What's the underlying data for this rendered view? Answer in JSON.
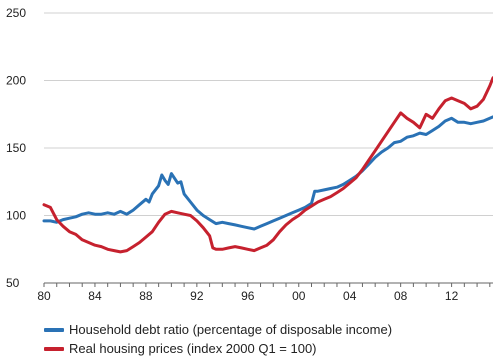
{
  "chart_data": {
    "type": "line",
    "title": "",
    "xlabel": "",
    "ylabel": "",
    "xlim": [
      1980,
      2015.25
    ],
    "ylim": [
      50,
      250
    ],
    "x_ticks": [
      1980,
      1984,
      1988,
      1992,
      1996,
      2000,
      2004,
      2008,
      2012
    ],
    "x_tick_labels": [
      "80",
      "84",
      "88",
      "92",
      "96",
      "00",
      "04",
      "08",
      "12"
    ],
    "y_ticks": [
      50,
      100,
      150,
      200,
      250
    ],
    "y_tick_labels": [
      "50",
      "100",
      "150",
      "200",
      "250"
    ],
    "grid": "horizontal",
    "legend_position": "bottom",
    "series": [
      {
        "name": "Household debt ratio (percentage of disposable income)",
        "color": "#2a72b5",
        "points": [
          [
            1980.0,
            96
          ],
          [
            1980.5,
            96
          ],
          [
            1981.0,
            95
          ],
          [
            1981.5,
            97
          ],
          [
            1982.0,
            98
          ],
          [
            1982.5,
            99
          ],
          [
            1983.0,
            101
          ],
          [
            1983.5,
            102
          ],
          [
            1984.0,
            101
          ],
          [
            1984.5,
            101
          ],
          [
            1985.0,
            102
          ],
          [
            1985.5,
            101
          ],
          [
            1986.0,
            103
          ],
          [
            1986.5,
            101
          ],
          [
            1987.0,
            104
          ],
          [
            1987.5,
            108
          ],
          [
            1988.0,
            112
          ],
          [
            1988.25,
            110
          ],
          [
            1988.5,
            116
          ],
          [
            1989.0,
            122
          ],
          [
            1989.25,
            130
          ],
          [
            1989.5,
            126
          ],
          [
            1989.75,
            123
          ],
          [
            1990.0,
            131
          ],
          [
            1990.5,
            124
          ],
          [
            1990.75,
            125
          ],
          [
            1991.0,
            116
          ],
          [
            1991.5,
            110
          ],
          [
            1992.0,
            104
          ],
          [
            1992.5,
            100
          ],
          [
            1993.0,
            97
          ],
          [
            1993.5,
            94
          ],
          [
            1994.0,
            95
          ],
          [
            1994.5,
            94
          ],
          [
            1995.0,
            93
          ],
          [
            1995.5,
            92
          ],
          [
            1996.0,
            91
          ],
          [
            1996.5,
            90
          ],
          [
            1997.0,
            92
          ],
          [
            1997.5,
            94
          ],
          [
            1998.0,
            96
          ],
          [
            1998.5,
            98
          ],
          [
            1999.0,
            100
          ],
          [
            1999.5,
            102
          ],
          [
            2000.0,
            104
          ],
          [
            2000.5,
            106
          ],
          [
            2001.0,
            109
          ],
          [
            2001.25,
            118
          ],
          [
            2001.5,
            118
          ],
          [
            2002.0,
            119
          ],
          [
            2002.5,
            120
          ],
          [
            2003.0,
            121
          ],
          [
            2003.5,
            123
          ],
          [
            2004.0,
            126
          ],
          [
            2004.5,
            129
          ],
          [
            2005.0,
            133
          ],
          [
            2005.5,
            138
          ],
          [
            2006.0,
            143
          ],
          [
            2006.5,
            147
          ],
          [
            2007.0,
            150
          ],
          [
            2007.5,
            154
          ],
          [
            2008.0,
            155
          ],
          [
            2008.5,
            158
          ],
          [
            2009.0,
            159
          ],
          [
            2009.5,
            161
          ],
          [
            2010.0,
            160
          ],
          [
            2010.5,
            163
          ],
          [
            2011.0,
            166
          ],
          [
            2011.5,
            170
          ],
          [
            2012.0,
            172
          ],
          [
            2012.5,
            169
          ],
          [
            2013.0,
            169
          ],
          [
            2013.5,
            168
          ],
          [
            2014.0,
            169
          ],
          [
            2014.5,
            170
          ],
          [
            2015.0,
            172
          ],
          [
            2015.25,
            173
          ]
        ]
      },
      {
        "name": "Real housing prices (index 2000 Q1 = 100)",
        "color": "#c6212e",
        "points": [
          [
            1980.0,
            108
          ],
          [
            1980.5,
            106
          ],
          [
            1981.0,
            97
          ],
          [
            1981.5,
            92
          ],
          [
            1982.0,
            88
          ],
          [
            1982.5,
            86
          ],
          [
            1983.0,
            82
          ],
          [
            1983.5,
            80
          ],
          [
            1984.0,
            78
          ],
          [
            1984.5,
            77
          ],
          [
            1985.0,
            75
          ],
          [
            1985.5,
            74
          ],
          [
            1986.0,
            73
          ],
          [
            1986.5,
            74
          ],
          [
            1987.0,
            77
          ],
          [
            1987.5,
            80
          ],
          [
            1988.0,
            84
          ],
          [
            1988.5,
            88
          ],
          [
            1989.0,
            95
          ],
          [
            1989.5,
            101
          ],
          [
            1990.0,
            103
          ],
          [
            1990.5,
            102
          ],
          [
            1991.0,
            101
          ],
          [
            1991.5,
            100
          ],
          [
            1992.0,
            96
          ],
          [
            1992.5,
            91
          ],
          [
            1993.0,
            85
          ],
          [
            1993.25,
            76
          ],
          [
            1993.5,
            75
          ],
          [
            1994.0,
            75
          ],
          [
            1994.5,
            76
          ],
          [
            1995.0,
            77
          ],
          [
            1995.5,
            76
          ],
          [
            1996.0,
            75
          ],
          [
            1996.5,
            74
          ],
          [
            1997.0,
            76
          ],
          [
            1997.5,
            78
          ],
          [
            1998.0,
            82
          ],
          [
            1998.5,
            88
          ],
          [
            1999.0,
            93
          ],
          [
            1999.5,
            97
          ],
          [
            2000.0,
            100
          ],
          [
            2000.5,
            104
          ],
          [
            2001.0,
            107
          ],
          [
            2001.5,
            110
          ],
          [
            2002.0,
            112
          ],
          [
            2002.5,
            114
          ],
          [
            2003.0,
            117
          ],
          [
            2003.5,
            120
          ],
          [
            2004.0,
            124
          ],
          [
            2004.5,
            128
          ],
          [
            2005.0,
            134
          ],
          [
            2005.5,
            141
          ],
          [
            2006.0,
            148
          ],
          [
            2006.5,
            155
          ],
          [
            2007.0,
            162
          ],
          [
            2007.5,
            169
          ],
          [
            2008.0,
            176
          ],
          [
            2008.5,
            172
          ],
          [
            2009.0,
            169
          ],
          [
            2009.5,
            165
          ],
          [
            2010.0,
            175
          ],
          [
            2010.5,
            172
          ],
          [
            2011.0,
            179
          ],
          [
            2011.5,
            185
          ],
          [
            2012.0,
            187
          ],
          [
            2012.5,
            185
          ],
          [
            2013.0,
            183
          ],
          [
            2013.5,
            179
          ],
          [
            2014.0,
            181
          ],
          [
            2014.5,
            186
          ],
          [
            2015.0,
            196
          ],
          [
            2015.25,
            202
          ]
        ]
      }
    ]
  }
}
